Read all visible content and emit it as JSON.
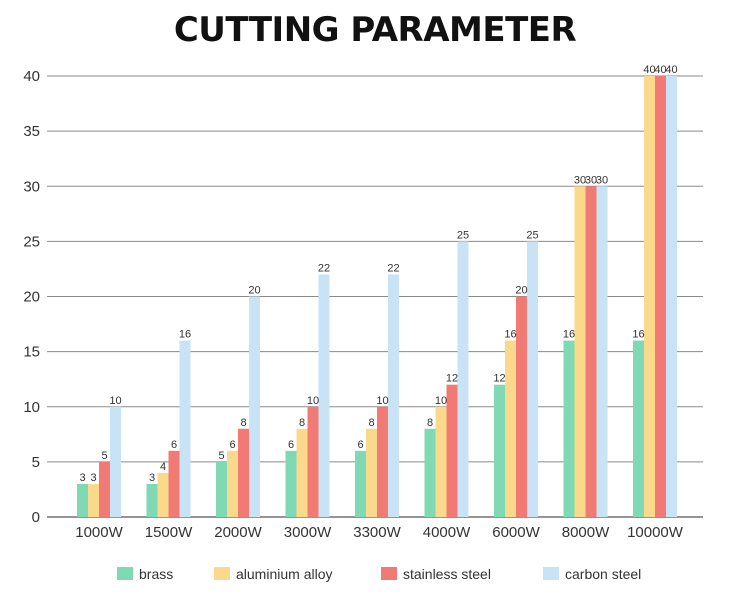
{
  "chart_data": {
    "type": "bar",
    "title": "CUTTING PARAMETER",
    "xlabel": "",
    "ylabel": "",
    "ylim": [
      0,
      40
    ],
    "yticks": [
      0,
      5,
      10,
      15,
      20,
      25,
      30,
      35,
      40
    ],
    "grid": true,
    "legend_position": "bottom",
    "categories": [
      "1000W",
      "1500W",
      "2000W",
      "3000W",
      "3300W",
      "4000W",
      "6000W",
      "8000W",
      "10000W"
    ],
    "series": [
      {
        "name": "brass",
        "color": "#7ed9b4",
        "values": [
          3,
          3,
          5,
          6,
          6,
          8,
          12,
          16,
          16
        ]
      },
      {
        "name": "aluminium alloy",
        "color": "#fbd98c",
        "values": [
          3,
          4,
          6,
          8,
          8,
          10,
          16,
          30,
          40
        ]
      },
      {
        "name": "stainless steel",
        "color": "#f27a74",
        "values": [
          5,
          6,
          8,
          10,
          10,
          12,
          20,
          30,
          40
        ]
      },
      {
        "name": "carbon steel",
        "color": "#c8e3f5",
        "values": [
          10,
          16,
          20,
          22,
          22,
          25,
          25,
          30,
          40
        ]
      }
    ]
  }
}
